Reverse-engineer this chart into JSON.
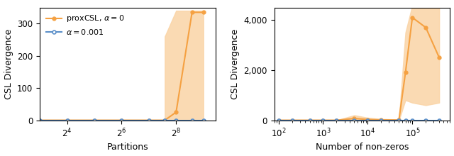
{
  "left_plot": {
    "xlabel": "Partitions",
    "ylabel": "CSL Divergence",
    "xticks": [
      16,
      64,
      256
    ],
    "xtick_labels": [
      "$2^4$",
      "$2^6$",
      "$2^8$"
    ],
    "xlim": [
      8,
      700
    ],
    "ylim": [
      0,
      350
    ],
    "orange_x": [
      8,
      16,
      32,
      64,
      128,
      192,
      256,
      384,
      512
    ],
    "orange_y": [
      0,
      0,
      0,
      0,
      0,
      0,
      25,
      335,
      335
    ],
    "orange_fill_x": [
      192,
      256,
      384,
      512,
      512,
      384,
      256,
      192
    ],
    "orange_fill_lo": [
      0,
      0,
      0,
      0
    ],
    "orange_fill_hi": [
      260,
      340,
      340,
      340
    ],
    "blue_x": [
      8,
      16,
      32,
      64,
      128,
      192,
      256,
      384,
      512
    ],
    "blue_y": [
      0,
      0,
      0,
      0,
      0,
      0,
      0,
      0,
      0
    ]
  },
  "right_plot": {
    "xlabel": "Number of non-zeros",
    "ylabel": "CSL Divergence",
    "xlim": [
      80,
      700000
    ],
    "ylim": [
      0,
      4500
    ],
    "orange_x": [
      100,
      200,
      500,
      1000,
      2000,
      5000,
      10000,
      20000,
      50000,
      70000,
      100000,
      200000,
      400000
    ],
    "orange_y": [
      0,
      0,
      0,
      0,
      0,
      70,
      30,
      15,
      10,
      1900,
      4100,
      3700,
      2500
    ],
    "orange_fill_lo": [
      0,
      0,
      0,
      0,
      0,
      0,
      0,
      0,
      0,
      800,
      700,
      600,
      700
    ],
    "orange_fill_hi": [
      0,
      0,
      0,
      0,
      0,
      200,
      100,
      50,
      30,
      3500,
      4600,
      4700,
      4800
    ],
    "blue_x": [
      100,
      200,
      500,
      1000,
      2000,
      5000,
      10000,
      20000,
      50000,
      70000,
      100000,
      200000,
      400000
    ],
    "blue_y": [
      0,
      0,
      0,
      0,
      0,
      0,
      0,
      0,
      0,
      0,
      0,
      0,
      0
    ]
  },
  "legend_labels": [
    "proxCSL, $\\alpha = 0$",
    "$\\alpha = 0.001$"
  ],
  "orange_color": "#f5a142",
  "blue_color": "#5b8fc9",
  "orange_fill": "#fad4a6"
}
